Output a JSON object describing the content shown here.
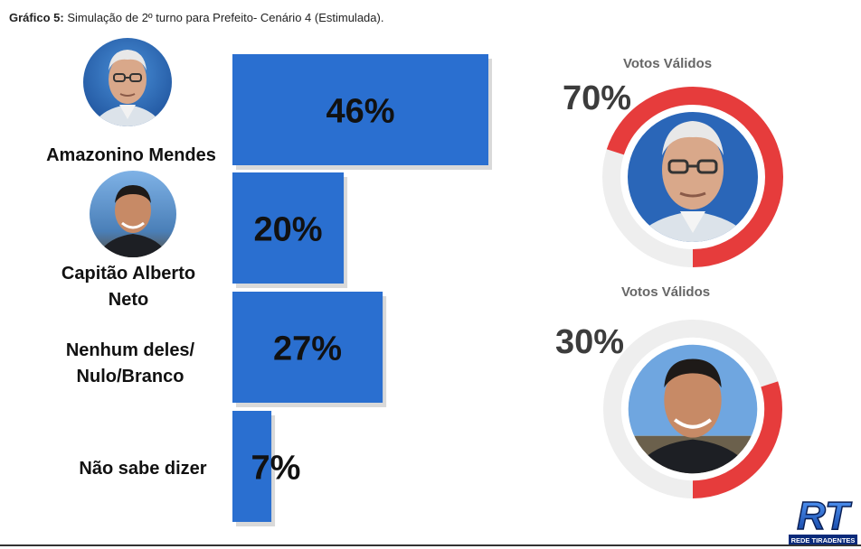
{
  "header": {
    "title_prefix": "Gráfico 5:",
    "title_text": "Simulação de 2º turno para Prefeito- Cenário 4 (Estimulada)."
  },
  "chart_data": [
    {
      "type": "bar",
      "orientation": "horizontal",
      "categories": [
        "Amazonino Mendes",
        "Capitão Alberto Neto",
        "Nenhum deles/ Nulo/Branco",
        "Não sabe dizer"
      ],
      "category_lines": [
        [
          "Amazonino Mendes"
        ],
        [
          "Capitão Alberto",
          "Neto"
        ],
        [
          "Nenhum deles/",
          "Nulo/Branco"
        ],
        [
          "Não sabe dizer"
        ]
      ],
      "values": [
        46,
        20,
        27,
        7
      ],
      "data_labels": [
        "46%",
        "20%",
        "27%",
        "7%"
      ],
      "unit": "%",
      "xlim": [
        0,
        46
      ],
      "color": "#2a6fd0",
      "grid": false
    },
    {
      "type": "pie",
      "title": "Votos Válidos",
      "candidate": "Amazonino Mendes",
      "value": 70,
      "label": "70%",
      "color": "#e63c3c"
    },
    {
      "type": "pie",
      "title": "Votos Válidos",
      "candidate": "Capitão Alberto Neto",
      "value": 30,
      "label": "30%",
      "color": "#e63c3c"
    }
  ],
  "colors": {
    "bar": "#2a6fd0",
    "donut_fill": "#e63c3c",
    "donut_track": "#eeeeee"
  },
  "logo": {
    "text": "RT",
    "caption": "REDE TIRADENTES"
  }
}
